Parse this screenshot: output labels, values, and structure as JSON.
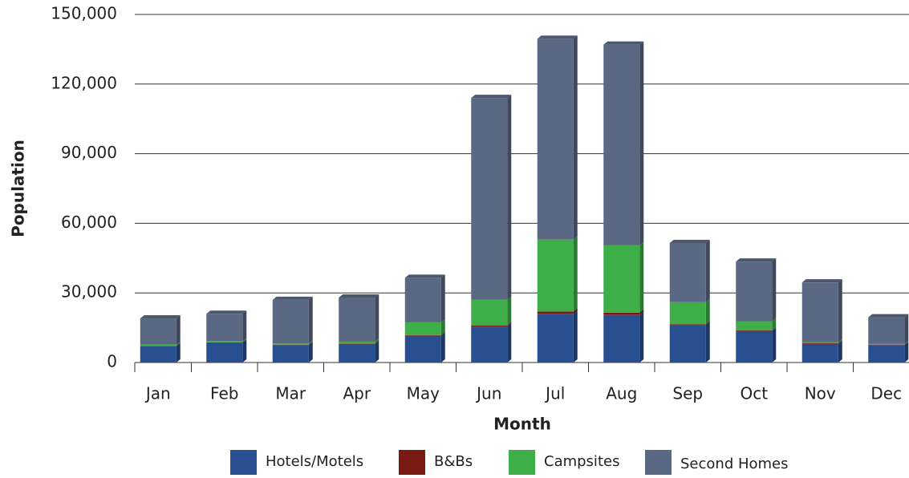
{
  "chart_data": {
    "type": "stacked-bar",
    "x_label": "Month",
    "y_label": "Population",
    "categories": [
      "Jan",
      "Feb",
      "Mar",
      "Apr",
      "May",
      "Jun",
      "Jul",
      "Aug",
      "Sep",
      "Oct",
      "Nov",
      "Dec"
    ],
    "series": [
      {
        "name": "Hotels/Motels",
        "color": "#284f8f",
        "values": [
          7000,
          8500,
          7500,
          8000,
          11500,
          15500,
          21000,
          20500,
          16000,
          13500,
          8000,
          7500
        ]
      },
      {
        "name": "B&Bs",
        "color": "#7b1a12",
        "values": [
          200,
          200,
          200,
          200,
          300,
          500,
          1000,
          1000,
          500,
          300,
          300,
          200
        ]
      },
      {
        "name": "Campsites",
        "color": "#3eae49",
        "values": [
          500,
          500,
          500,
          800,
          5500,
          11000,
          31000,
          29000,
          9500,
          4000,
          500,
          300
        ]
      },
      {
        "name": "Second Homes",
        "color": "#5b6883",
        "values": [
          11300,
          11800,
          18800,
          19000,
          19200,
          87000,
          86500,
          86500,
          25500,
          25700,
          25700,
          11500
        ]
      }
    ],
    "ylim": [
      0,
      150000
    ],
    "yticks": [
      0,
      {
        "value": 30000,
        "label": "30,000"
      },
      {
        "value": 60000,
        "label": "60,000"
      },
      {
        "value": 90000,
        "label": "90,000"
      },
      {
        "value": 120000,
        "label": "120,000"
      },
      {
        "value": 150000,
        "label": "150,000"
      }
    ],
    "grid": true
  }
}
